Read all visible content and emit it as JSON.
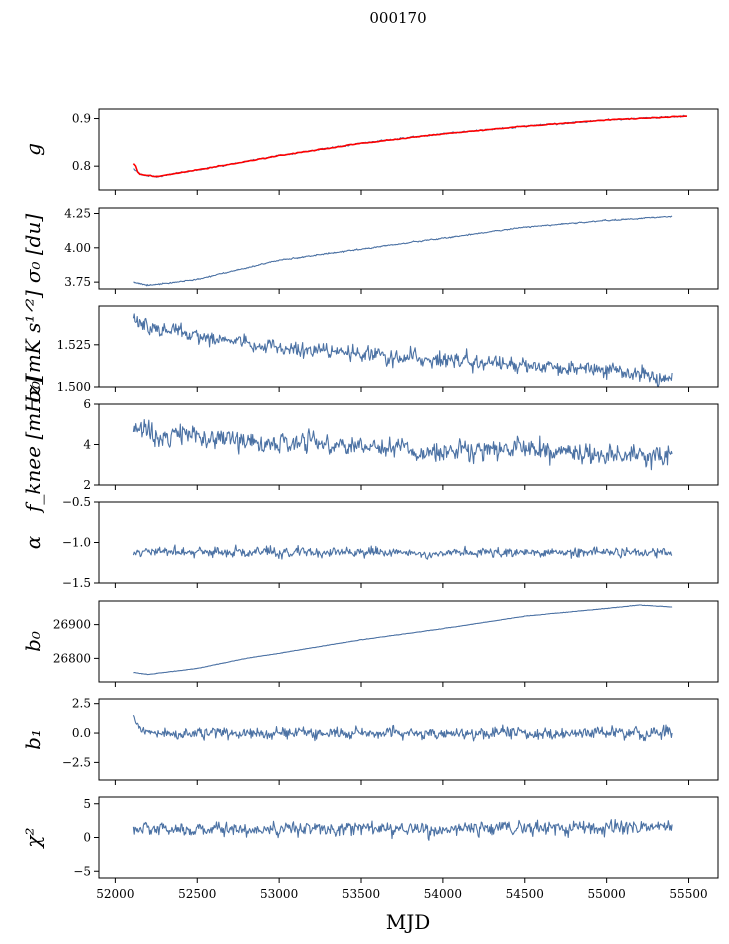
{
  "figure": {
    "suptitle": "000170",
    "xlabel": "MJD",
    "x_ticks": [
      52000,
      52500,
      53000,
      53500,
      54000,
      54500,
      55000,
      55500
    ],
    "x_tick_labels": [
      "52000",
      "52500",
      "53000",
      "53500",
      "54000",
      "54500",
      "55000",
      "55500"
    ],
    "x_range": [
      51900,
      55680
    ],
    "series_color": "#4c72a4",
    "overlay_color": "#ff0000"
  },
  "chart_data": [
    {
      "type": "line",
      "id": "g",
      "ylabel": "g",
      "ylim": [
        0.75,
        0.92
      ],
      "yticks": [
        0.8,
        0.9
      ],
      "ytick_labels": [
        "0.8",
        "0.9"
      ],
      "x_start": 52110,
      "x_end": 55490,
      "overlay": true,
      "points": [
        [
          52110,
          0.795
        ],
        [
          52160,
          0.782
        ],
        [
          52250,
          0.778
        ],
        [
          52500,
          0.792
        ],
        [
          53000,
          0.822
        ],
        [
          53500,
          0.848
        ],
        [
          54000,
          0.868
        ],
        [
          54500,
          0.884
        ],
        [
          55000,
          0.897
        ],
        [
          55490,
          0.905
        ]
      ],
      "noise": 0.0015
    },
    {
      "type": "line",
      "id": "sigma0_du",
      "ylabel": "σ₀ [du]",
      "ylim": [
        3.7,
        4.29
      ],
      "yticks": [
        3.75,
        4.0,
        4.25
      ],
      "ytick_labels": [
        "3.75",
        "4.00",
        "4.25"
      ],
      "x_start": 52110,
      "x_end": 55400,
      "points": [
        [
          52110,
          3.75
        ],
        [
          52200,
          3.725
        ],
        [
          52500,
          3.77
        ],
        [
          53000,
          3.91
        ],
        [
          53500,
          3.99
        ],
        [
          54000,
          4.07
        ],
        [
          54500,
          4.15
        ],
        [
          55000,
          4.2
        ],
        [
          55400,
          4.23
        ]
      ],
      "noise": 0.004
    },
    {
      "type": "line",
      "id": "sigma0_mk",
      "ylabel": "σ₀[mK s¹ᐟ²]",
      "ylim": [
        1.5,
        1.548
      ],
      "yticks": [
        1.5,
        1.525
      ],
      "ytick_labels": [
        "1.500",
        "1.525"
      ],
      "x_start": 52110,
      "x_end": 55400,
      "points": [
        [
          52110,
          1.538
        ],
        [
          52500,
          1.53
        ],
        [
          53000,
          1.523
        ],
        [
          53500,
          1.52
        ],
        [
          54000,
          1.516
        ],
        [
          54500,
          1.513
        ],
        [
          55000,
          1.51
        ],
        [
          55400,
          1.505
        ]
      ],
      "noise": 0.004
    },
    {
      "type": "line",
      "id": "fknee",
      "ylabel": "f_knee [mHz]",
      "ylim": [
        2,
        6
      ],
      "yticks": [
        2,
        4,
        6
      ],
      "ytick_labels": [
        "2",
        "4",
        "6"
      ],
      "x_start": 52110,
      "x_end": 55400,
      "points": [
        [
          52110,
          4.7
        ],
        [
          52500,
          4.4
        ],
        [
          53000,
          4.1
        ],
        [
          53500,
          3.9
        ],
        [
          54000,
          3.7
        ],
        [
          54500,
          3.7
        ],
        [
          55000,
          3.6
        ],
        [
          55400,
          3.4
        ]
      ],
      "noise": 0.45
    },
    {
      "type": "line",
      "id": "alpha",
      "ylabel": "α",
      "ylim": [
        -1.5,
        -0.5
      ],
      "yticks": [
        -1.5,
        -1.0,
        -0.5
      ],
      "ytick_labels": [
        "−1.5",
        "−1.0",
        "−0.5"
      ],
      "x_start": 52110,
      "x_end": 55400,
      "points": [
        [
          52110,
          -1.12
        ],
        [
          55400,
          -1.12
        ]
      ],
      "noise": 0.05
    },
    {
      "type": "line",
      "id": "b0",
      "ylabel": "b₀",
      "ylim": [
        26730,
        26970
      ],
      "yticks": [
        26800,
        26900
      ],
      "ytick_labels": [
        "26800",
        "26900"
      ],
      "x_start": 52110,
      "x_end": 55400,
      "points": [
        [
          52110,
          26758
        ],
        [
          52200,
          26752
        ],
        [
          52500,
          26770
        ],
        [
          52800,
          26800
        ],
        [
          53000,
          26815
        ],
        [
          53500,
          26855
        ],
        [
          54000,
          26888
        ],
        [
          54500,
          26925
        ],
        [
          55000,
          26948
        ],
        [
          55200,
          26958
        ],
        [
          55400,
          26952
        ]
      ],
      "noise": 0.6
    },
    {
      "type": "line",
      "id": "b1",
      "ylabel": "b₁",
      "ylim": [
        -4.0,
        2.9
      ],
      "yticks": [
        -2.5,
        0.0,
        2.5
      ],
      "ytick_labels": [
        "−2.5",
        "0.0",
        "2.5"
      ],
      "x_start": 52110,
      "x_end": 55400,
      "points": [
        [
          52110,
          1.5
        ],
        [
          52160,
          0.0
        ],
        [
          55400,
          0.0
        ]
      ],
      "noise": 0.45
    },
    {
      "type": "line",
      "id": "chi2",
      "ylabel": "χ²",
      "ylim": [
        -6,
        6
      ],
      "yticks": [
        -5,
        0,
        5
      ],
      "ytick_labels": [
        "−5",
        "0",
        "5"
      ],
      "x_start": 52110,
      "x_end": 55400,
      "points": [
        [
          52110,
          1.2
        ],
        [
          55400,
          1.5
        ]
      ],
      "noise": 0.9
    }
  ]
}
